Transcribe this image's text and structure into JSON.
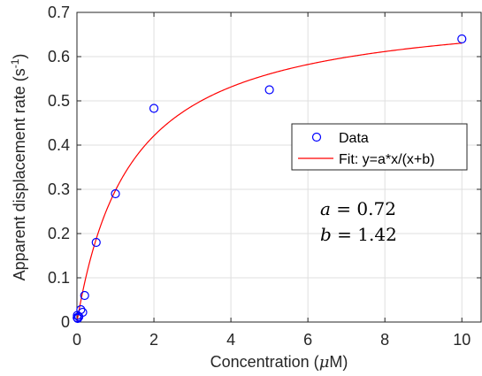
{
  "chart_data": {
    "type": "scatter",
    "xlabel_prefix": "Concentration (",
    "xlabel_unit_mu": "μ",
    "xlabel_unit_rest": "M)",
    "ylabel_main": "Apparent displacement rate (s",
    "ylabel_exp": "-1",
    "ylabel_close": ")",
    "xlim": [
      0,
      10.5
    ],
    "ylim": [
      0,
      0.7
    ],
    "xticks": [
      0,
      2,
      4,
      6,
      8,
      10
    ],
    "xtick_labels": [
      "0",
      "2",
      "4",
      "6",
      "8",
      "10"
    ],
    "yticks": [
      0,
      0.1,
      0.2,
      0.3,
      0.4,
      0.5,
      0.6,
      0.7
    ],
    "ytick_labels": [
      "0",
      "0.1",
      "0.2",
      "0.3",
      "0.4",
      "0.5",
      "0.6",
      "0.7"
    ],
    "grid": true,
    "legend_position": "center-right",
    "series": [
      {
        "name": "Data",
        "kind": "scatter",
        "marker": "open-circle",
        "color": "#0000ff",
        "points": [
          {
            "x": 0.005,
            "y": 0.01
          },
          {
            "x": 0.01,
            "y": 0.015
          },
          {
            "x": 0.02,
            "y": 0.008
          },
          {
            "x": 0.05,
            "y": 0.012
          },
          {
            "x": 0.1,
            "y": 0.028
          },
          {
            "x": 0.15,
            "y": 0.022
          },
          {
            "x": 0.2,
            "y": 0.06
          },
          {
            "x": 0.5,
            "y": 0.18
          },
          {
            "x": 1,
            "y": 0.29
          },
          {
            "x": 2,
            "y": 0.483
          },
          {
            "x": 5,
            "y": 0.525
          },
          {
            "x": 10,
            "y": 0.64
          }
        ]
      },
      {
        "name": "Fit: y=a*x/(x+b)",
        "kind": "line",
        "color": "#ff0000",
        "model": "a*x/(x+b)",
        "a": 0.72,
        "b": 1.42,
        "x_range": [
          0,
          10
        ]
      }
    ],
    "annotations": [
      {
        "lhs": "a",
        "rhs": "0.72"
      },
      {
        "lhs": "b",
        "rhs": "1.42"
      }
    ]
  }
}
